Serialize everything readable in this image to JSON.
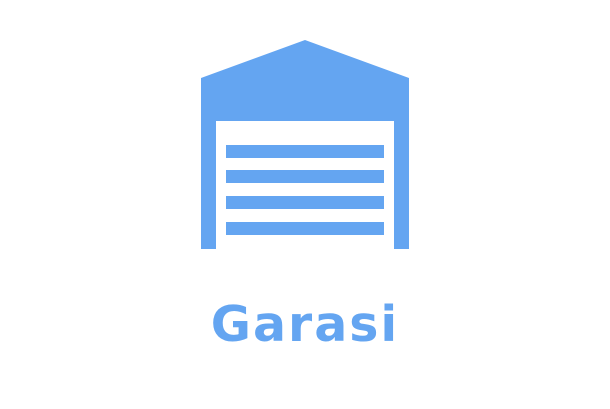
{
  "title": "Garasi",
  "icon": "garage-icon",
  "colors": {
    "accent": "#64A5F1",
    "background": "#FFFFFF"
  }
}
